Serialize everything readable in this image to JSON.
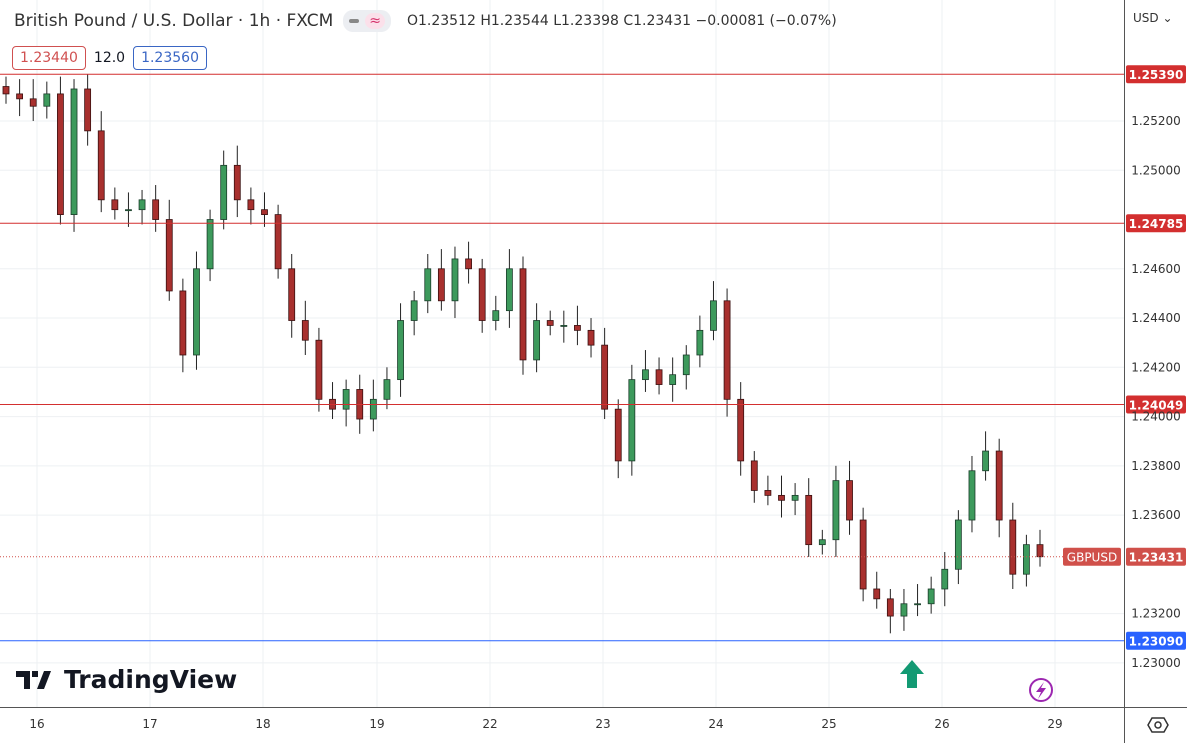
{
  "header": {
    "title": "British Pound / U.S. Dollar · 1h · FXCM",
    "ohlc": "O1.23512 H1.23544 L1.23398 C1.23431 −0.00081 (−0.07%)",
    "sell_price": "1.23440",
    "spread": "12.0",
    "buy_price": "1.23560",
    "currency": "USD"
  },
  "logo": "TradingView",
  "icons": [
    "dash-icon",
    "wave-icon",
    "chevron-down-icon",
    "arrow-up-icon",
    "lightning-icon",
    "settings-icon"
  ],
  "colors": {
    "up": "#3d9a5c",
    "down": "#a8302e",
    "resistance": "#d32f2f",
    "support": "#2962ff",
    "last": "#d0504a"
  },
  "chart_data": {
    "type": "candlestick",
    "symbol": "GBPUSD",
    "interval": "1h",
    "ylim": [
      1.2285,
      1.2556
    ],
    "y_ticks": [
      "1.25200",
      "1.25000",
      "1.24600",
      "1.24400",
      "1.24200",
      "1.24000",
      "1.23800",
      "1.23600",
      "1.23200",
      "1.23000"
    ],
    "x_ticks": [
      "16",
      "17",
      "18",
      "19",
      "22",
      "23",
      "24",
      "25",
      "26",
      "29"
    ],
    "close": [
      1.2531,
      1.2529,
      1.2526,
      1.2531,
      1.2482,
      1.2533,
      1.2516,
      1.2488,
      1.2484,
      1.2484,
      1.2488,
      1.248,
      1.2451,
      1.2425,
      1.246,
      1.248,
      1.2502,
      1.2488,
      1.2484,
      1.2482,
      1.246,
      1.2439,
      1.2431,
      1.2407,
      1.2403,
      1.2411,
      1.2399,
      1.2407,
      1.2415,
      1.2439,
      1.2447,
      1.246,
      1.2447,
      1.2464,
      1.246,
      1.2439,
      1.2443,
      1.246,
      1.2423,
      1.2439,
      1.2437,
      1.2437,
      1.2435,
      1.2429,
      1.2403,
      1.2382,
      1.2415,
      1.2419,
      1.2413,
      1.2417,
      1.2425,
      1.2435,
      1.2447,
      1.2407,
      1.2382,
      1.237,
      1.2368,
      1.2366,
      1.2368,
      1.2348,
      1.235,
      1.2374,
      1.2358,
      1.233,
      1.2326,
      1.2319,
      1.2324,
      1.2324,
      1.233,
      1.2338,
      1.2358,
      1.2378,
      1.2386,
      1.2358,
      1.2336,
      1.2348,
      1.23431
    ],
    "levels": [
      {
        "price": 1.2539,
        "label": "1.25390",
        "kind": "resistance"
      },
      {
        "price": 1.24785,
        "label": "1.24785",
        "kind": "resistance"
      },
      {
        "price": 1.24049,
        "label": "1.24049",
        "kind": "resistance"
      },
      {
        "price": 1.2309,
        "label": "1.23090",
        "kind": "support"
      }
    ],
    "last_price": {
      "price": 1.23431,
      "label": "1.23431",
      "symbol_label": "GBPUSD"
    },
    "grid": true
  }
}
